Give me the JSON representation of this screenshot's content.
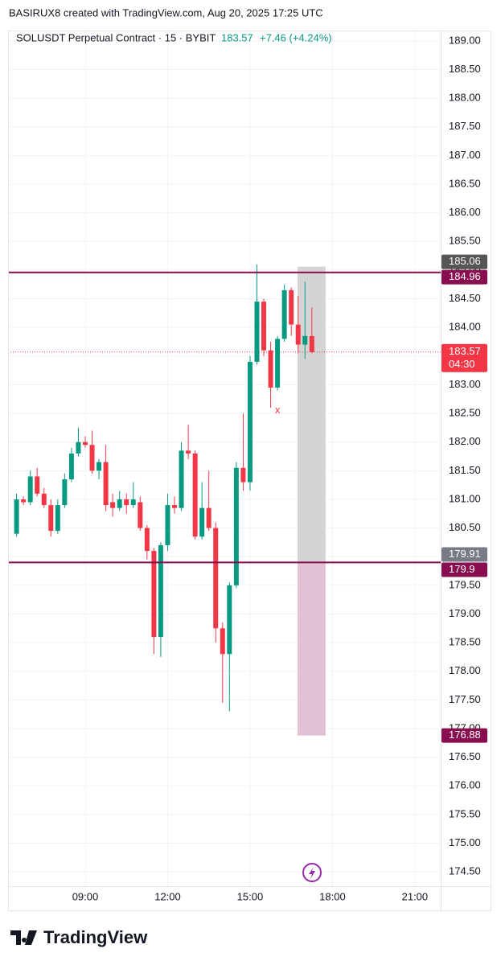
{
  "header": {
    "credit": "BASIRUX8 created with TradingView.com, Aug 20, 2025 17:25 UTC",
    "symbol": "SOLUSDT Perpetual Contract · 15 · BYBIT",
    "price": "183.57",
    "change": "+7.46 (+4.24%)"
  },
  "footer": {
    "brand": "TradingView"
  },
  "chart_data": {
    "type": "candlestick",
    "up_color": "#089981",
    "down_color": "#f23645",
    "grid": true,
    "x": [
      6.5,
      6.75,
      7,
      7.25,
      7.5,
      7.75,
      8,
      8.25,
      8.5,
      8.75,
      9,
      9.25,
      9.5,
      9.75,
      10,
      10.25,
      10.5,
      10.75,
      11,
      11.25,
      11.5,
      11.75,
      12,
      12.25,
      12.5,
      12.75,
      13,
      13.25,
      13.5,
      13.75,
      14,
      14.25,
      14.5,
      14.75,
      15,
      15.25,
      15.5,
      15.75,
      16,
      16.25,
      16.5,
      16.75,
      17,
      17.25
    ],
    "open": [
      180.4,
      181.0,
      180.95,
      181.4,
      181.1,
      180.9,
      180.45,
      180.9,
      181.35,
      181.8,
      182.0,
      181.95,
      181.5,
      181.65,
      180.95,
      180.85,
      181.0,
      180.9,
      180.95,
      180.5,
      180.1,
      178.6,
      180.2,
      180.9,
      180.85,
      181.85,
      181.8,
      180.35,
      180.85,
      180.5,
      178.75,
      178.3,
      179.5,
      181.55,
      181.3,
      183.4,
      184.45,
      183.6,
      182.95,
      183.8,
      184.65,
      184.05,
      183.7,
      183.85
    ],
    "high": [
      181.1,
      181.05,
      181.5,
      181.55,
      181.2,
      181.0,
      181.0,
      181.45,
      181.9,
      182.25,
      182.1,
      182.2,
      181.7,
      181.95,
      181.1,
      181.15,
      181.1,
      181.3,
      181.05,
      180.55,
      180.15,
      180.25,
      181.1,
      181.05,
      182.0,
      182.3,
      181.85,
      181.3,
      181.5,
      180.6,
      178.85,
      179.55,
      181.65,
      182.5,
      183.5,
      185.1,
      184.5,
      183.75,
      183.85,
      184.75,
      184.7,
      184.55,
      184.8,
      184.35
    ],
    "low": [
      180.35,
      180.9,
      180.9,
      181.05,
      180.85,
      180.35,
      180.4,
      180.85,
      181.3,
      181.75,
      181.9,
      181.45,
      181.35,
      180.8,
      180.7,
      180.8,
      180.75,
      180.85,
      180.45,
      179.95,
      178.3,
      178.25,
      180.1,
      180.75,
      180.8,
      181.7,
      180.3,
      180.3,
      180.45,
      178.5,
      177.45,
      177.3,
      179.45,
      181.15,
      181.15,
      183.35,
      183.5,
      182.6,
      182.9,
      183.75,
      183.85,
      183.55,
      183.45,
      183.55
    ],
    "close": [
      181.0,
      180.95,
      181.4,
      181.1,
      180.9,
      180.45,
      180.9,
      181.35,
      181.8,
      182.0,
      181.95,
      181.5,
      181.65,
      180.9,
      180.85,
      181.0,
      180.9,
      181.0,
      180.5,
      180.1,
      178.6,
      180.2,
      180.9,
      180.85,
      181.85,
      181.8,
      180.35,
      180.85,
      180.5,
      178.75,
      178.3,
      179.5,
      181.55,
      181.3,
      183.4,
      184.45,
      183.6,
      182.95,
      183.8,
      184.65,
      184.05,
      183.7,
      183.85,
      183.57
    ],
    "xlim": [
      6.19,
      21.94
    ],
    "xticks": [
      {
        "value": 9,
        "label": "09:00"
      },
      {
        "value": 12,
        "label": "12:00"
      },
      {
        "value": 15,
        "label": "15:00"
      },
      {
        "value": 18,
        "label": "18:00"
      },
      {
        "value": 21,
        "label": "21:00"
      }
    ],
    "ylim": [
      174.25,
      189.18
    ],
    "yticks": [
      {
        "value": 174.5,
        "label": "174.50"
      },
      {
        "value": 175,
        "label": "175.00"
      },
      {
        "value": 175.5,
        "label": "175.50"
      },
      {
        "value": 176,
        "label": "176.00"
      },
      {
        "value": 176.5,
        "label": "176.50"
      },
      {
        "value": 177,
        "label": "177.00"
      },
      {
        "value": 177.5,
        "label": "177.50"
      },
      {
        "value": 178,
        "label": "178.00"
      },
      {
        "value": 178.5,
        "label": "178.50"
      },
      {
        "value": 179,
        "label": "179.00"
      },
      {
        "value": 179.5,
        "label": "179.50"
      },
      {
        "value": 180,
        "label": "180.00"
      },
      {
        "value": 180.5,
        "label": "180.50"
      },
      {
        "value": 181,
        "label": "181.00"
      },
      {
        "value": 181.5,
        "label": "181.50"
      },
      {
        "value": 182,
        "label": "182.00"
      },
      {
        "value": 182.5,
        "label": "182.50"
      },
      {
        "value": 183,
        "label": "183.00"
      },
      {
        "value": 183.5,
        "label": "183.50"
      },
      {
        "value": 184,
        "label": "184.00"
      },
      {
        "value": 184.5,
        "label": "184.50"
      },
      {
        "value": 185,
        "label": "185.00"
      },
      {
        "value": 185.5,
        "label": "185.50"
      },
      {
        "value": 186,
        "label": "186.00"
      },
      {
        "value": 186.5,
        "label": "186.50"
      },
      {
        "value": 187,
        "label": "187.00"
      },
      {
        "value": 187.5,
        "label": "187.50"
      },
      {
        "value": 188,
        "label": "188.00"
      },
      {
        "value": 188.5,
        "label": "188.50"
      },
      {
        "value": 189,
        "label": "189.00"
      }
    ],
    "levels": [
      {
        "value": 184.96,
        "color": "#880e4f"
      },
      {
        "value": 179.9,
        "color": "#880e4f"
      }
    ],
    "position": {
      "target": 185.06,
      "entry": 179.91,
      "stop": 176.88,
      "x_start": 16.73,
      "x_end": 17.75,
      "target_color": "#555555",
      "entry_color": "#787b86",
      "stop_color": "#880e4f",
      "profit_fill": "#d4d4d4",
      "loss_fill": "#e3c1d4"
    },
    "last_price": {
      "value": 183.57,
      "countdown": "04:30",
      "color": "#f23645"
    },
    "annotations": [
      {
        "text": "x",
        "x": 16.0,
        "y": 182.55,
        "color": "#f23645"
      }
    ]
  }
}
